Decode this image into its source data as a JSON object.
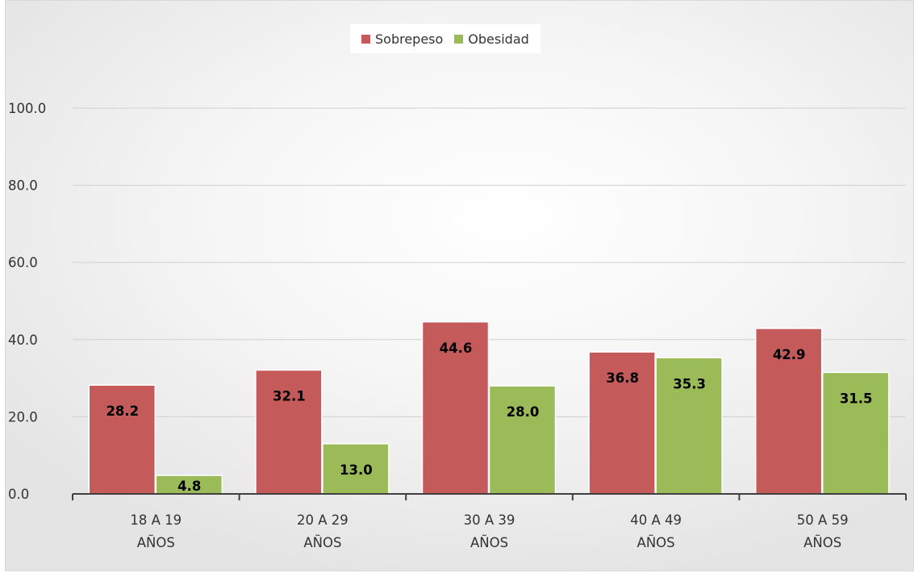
{
  "chart_data": {
    "type": "bar",
    "categories": [
      [
        "18 A 19",
        "AÑOS"
      ],
      [
        "20 A 29",
        "AÑOS"
      ],
      [
        "30 A 39",
        "AÑOS"
      ],
      [
        "40 A 49",
        "AÑOS"
      ],
      [
        "50 A 59",
        "AÑOS"
      ]
    ],
    "series": [
      {
        "name": "Sobrepeso",
        "values": [
          28.2,
          32.1,
          44.6,
          36.8,
          42.9
        ],
        "labels": [
          "28.2",
          "32.1",
          "44.6",
          "36.8",
          "42.9"
        ],
        "color": "#c55a5a"
      },
      {
        "name": "Obesidad",
        "values": [
          4.8,
          13.0,
          28.0,
          35.3,
          31.5
        ],
        "labels": [
          "4.8",
          "13.0",
          "28.0",
          "35.3",
          "31.5"
        ],
        "color": "#9bbb59"
      }
    ],
    "ylim": [
      0,
      100
    ],
    "yticks": [
      "0.0",
      "20.0",
      "40.0",
      "60.0",
      "80.0",
      "100.0"
    ],
    "ytick_values": [
      0,
      20,
      40,
      60,
      80,
      100
    ],
    "grid": true,
    "legend_position": "top-center"
  }
}
